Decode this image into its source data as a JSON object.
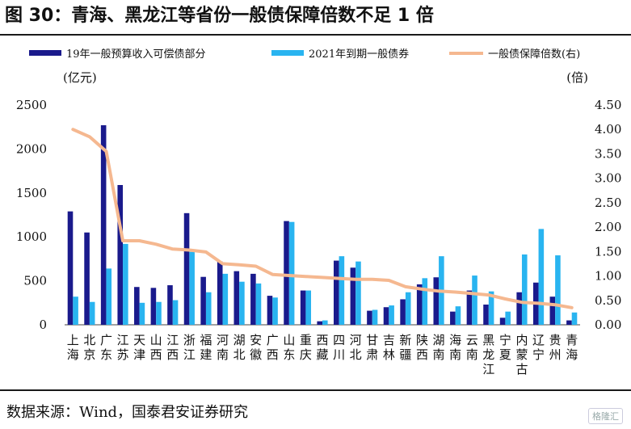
{
  "title": "图 30：青海、黑龙江等省份一般债保障倍数不足 1 倍",
  "source": "数据来源：Wind，国泰君安证券研究",
  "watermark": "格隆汇",
  "chart_data": {
    "type": "bar",
    "categories": [
      "上海",
      "北京",
      "广东",
      "江苏",
      "天津",
      "山西",
      "江西",
      "浙江",
      "福建",
      "河南",
      "湖北",
      "安徽",
      "广西",
      "山东",
      "重庆",
      "西藏",
      "四川",
      "河北",
      "甘肃",
      "吉林",
      "新疆",
      "陕西",
      "湖南",
      "海南",
      "云南",
      "黑龙江",
      "宁夏",
      "内蒙古",
      "辽宁",
      "贵州",
      "青海"
    ],
    "series": [
      {
        "name": "19年一般预算收入可偿债部分",
        "type": "bar",
        "axis": "left",
        "color": "#1a1a8c",
        "values": [
          1290,
          1050,
          2270,
          1590,
          430,
          420,
          450,
          1270,
          545,
          720,
          610,
          580,
          330,
          1180,
          390,
          40,
          730,
          650,
          160,
          200,
          290,
          460,
          540,
          150,
          390,
          230,
          80,
          370,
          480,
          320,
          50
        ]
      },
      {
        "name": "2021年到期一般债券",
        "type": "bar",
        "axis": "left",
        "color": "#29b4f0",
        "values": [
          320,
          260,
          640,
          920,
          250,
          260,
          280,
          830,
          370,
          580,
          490,
          470,
          310,
          1170,
          390,
          50,
          780,
          720,
          170,
          220,
          370,
          530,
          780,
          210,
          560,
          380,
          150,
          800,
          1090,
          790,
          140
        ]
      },
      {
        "name": "一般债保障倍数(右)",
        "type": "line",
        "axis": "right",
        "color": "#f5b890",
        "values": [
          4.0,
          3.85,
          3.55,
          1.72,
          1.72,
          1.65,
          1.55,
          1.53,
          1.49,
          1.25,
          1.23,
          1.2,
          1.03,
          1.01,
          0.99,
          0.97,
          0.95,
          0.93,
          0.93,
          0.91,
          0.78,
          0.73,
          0.69,
          0.67,
          0.64,
          0.61,
          0.53,
          0.46,
          0.44,
          0.41,
          0.35
        ]
      }
    ],
    "ylabel_left": "(亿元)",
    "ylabel_right": "(倍)",
    "ylim_left": [
      0,
      2500
    ],
    "ylim_right": [
      0,
      4.5
    ],
    "yticks_left": [
      "0",
      "500",
      "1000",
      "1500",
      "2000",
      "2500"
    ],
    "yticks_right": [
      "0.00",
      "0.50",
      "1.00",
      "1.50",
      "2.00",
      "2.50",
      "3.00",
      "3.50",
      "4.00",
      "4.50"
    ],
    "legend": [
      "19年一般预算收入可偿债部分",
      "2021年到期一般债券",
      "一般债保障倍数(右)"
    ],
    "legend_position": "top",
    "grid": false
  }
}
